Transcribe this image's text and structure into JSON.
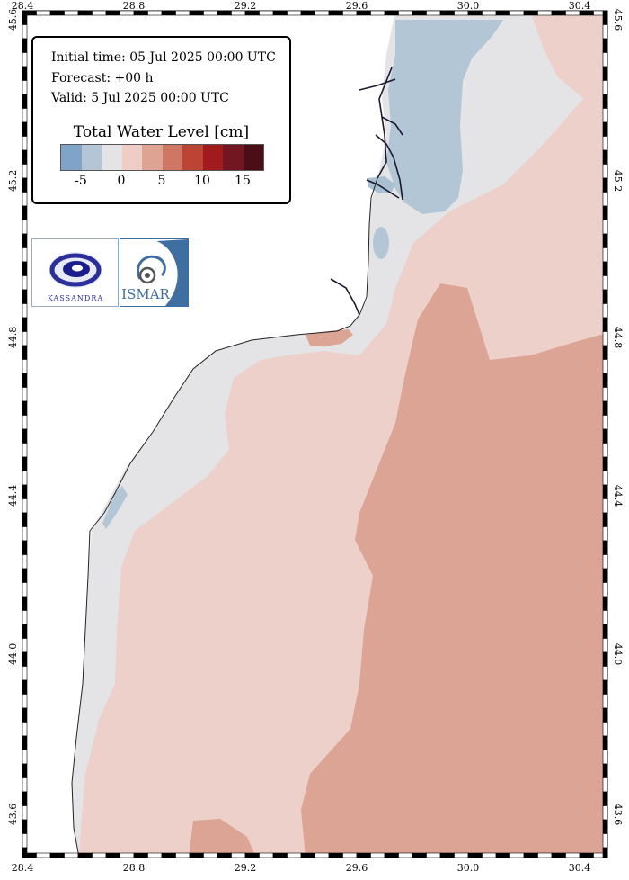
{
  "map": {
    "lon_ticks": [
      "28.4",
      "28.8",
      "29.2",
      "29.6",
      "30.0",
      "30.4"
    ],
    "lat_ticks": [
      "45.6",
      "45.2",
      "44.8",
      "44.4",
      "44.0",
      "43.6"
    ]
  },
  "info": {
    "initial_time": "Initial time: 05 Jul 2025 00:00 UTC",
    "forecast": "Forecast: +00 h",
    "valid": "Valid:  5 Jul 2025 00:00 UTC"
  },
  "legend": {
    "title": "Total Water Level [cm]",
    "colors": [
      "#7fa4c8",
      "#b4c6d6",
      "#e4e4e6",
      "#edcdc6",
      "#dea393",
      "#cf7664",
      "#bb4434",
      "#a01a1e",
      "#741522",
      "#4c0e16"
    ],
    "labels": [
      "-5",
      "0",
      "5",
      "10",
      "15"
    ]
  },
  "logos": {
    "kassandra": "KASSANDRA",
    "ismar": "ISMAR"
  }
}
